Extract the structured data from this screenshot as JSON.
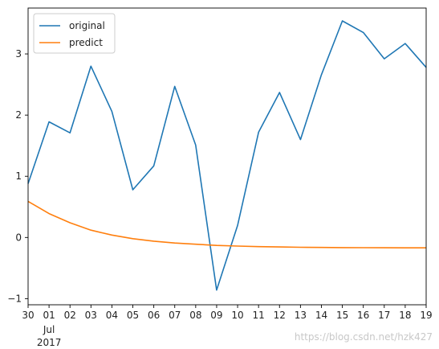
{
  "chart_data": {
    "type": "line",
    "x": [
      "30",
      "01",
      "02",
      "03",
      "04",
      "05",
      "06",
      "07",
      "08",
      "09",
      "10",
      "11",
      "12",
      "13",
      "14",
      "15",
      "16",
      "17",
      "18",
      "19"
    ],
    "x_sublabels": {
      "01": [
        "Jul",
        "2017"
      ]
    },
    "series": [
      {
        "name": "original",
        "color": "#1f77b4",
        "values": [
          0.88,
          1.89,
          1.71,
          2.8,
          2.06,
          0.78,
          1.17,
          2.47,
          1.51,
          -0.86,
          0.2,
          1.72,
          2.37,
          1.6,
          2.66,
          3.54,
          3.35,
          2.92,
          3.17,
          2.78
        ]
      },
      {
        "name": "predict",
        "color": "#ff7f0e",
        "values": [
          0.59,
          0.39,
          0.24,
          0.12,
          0.04,
          -0.02,
          -0.06,
          -0.09,
          -0.11,
          -0.13,
          -0.14,
          -0.15,
          -0.155,
          -0.16,
          -0.163,
          -0.165,
          -0.167,
          -0.168,
          -0.169,
          -0.17
        ]
      }
    ],
    "yticks": [
      -1,
      0,
      1,
      2,
      3
    ],
    "ylim": [
      -1.1,
      3.75
    ],
    "grid": false,
    "legend_position": "upper-left"
  },
  "watermark": "https://blog.csdn.net/hzk427"
}
